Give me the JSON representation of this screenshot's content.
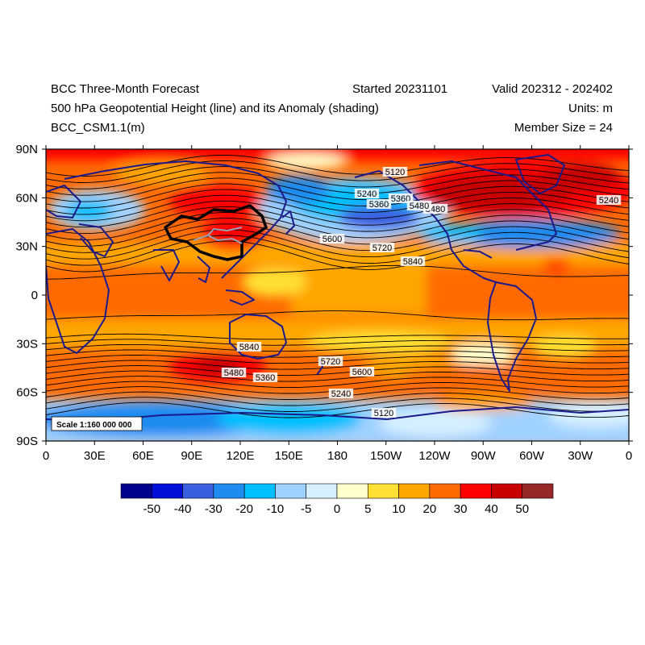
{
  "header": {
    "title": "BCC Three-Month Forecast",
    "started": "Started 20231101",
    "valid": "Valid 202312 - 202402",
    "subtitle": "500 hPa Geopotential Height (line) and its Anomaly (shading)",
    "units": "Units: m",
    "model": "BCC_CSM1.1(m)",
    "member_size": "Member Size = 24"
  },
  "map": {
    "projection": "cylindrical equidistant",
    "lon_range": [
      0,
      360
    ],
    "lat_range": [
      -90,
      90
    ],
    "lat_ticks": [
      "90N",
      "60N",
      "30N",
      "0",
      "30S",
      "60S",
      "90S"
    ],
    "lon_ticks": [
      "0",
      "30E",
      "60E",
      "90E",
      "120E",
      "150E",
      "180",
      "150W",
      "120W",
      "90W",
      "60W",
      "30W",
      "0"
    ],
    "scale_label": "Scale 1:160 000 000",
    "contour_labels": [
      "5120",
      "5240",
      "5360",
      "5480",
      "5600",
      "5720",
      "5840",
      "5840",
      "5720",
      "5600",
      "5480",
      "5360",
      "5240",
      "5120",
      "5240",
      "5360",
      "5480"
    ],
    "colors": {
      "coast": "#1a1a8c",
      "china_border": "#000000",
      "rivers": "#9aa0b8",
      "contour": "#000000"
    }
  },
  "colorbar": {
    "labels": [
      "-50",
      "-40",
      "-30",
      "-20",
      "-10",
      "-5",
      "0",
      "5",
      "10",
      "20",
      "30",
      "40",
      "50"
    ],
    "colors": [
      "#00008f",
      "#0010d8",
      "#3a5fe0",
      "#1e8cf0",
      "#00bfff",
      "#a0d2ff",
      "#d7f0ff",
      "#ffffcc",
      "#ffe033",
      "#ffa600",
      "#ff6a00",
      "#ff0000",
      "#c80000",
      "#962828"
    ]
  }
}
